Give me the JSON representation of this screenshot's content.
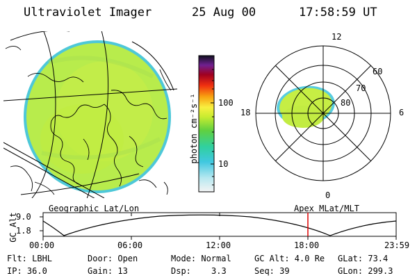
{
  "header": {
    "instrument": "Ultraviolet Imager",
    "date": "25 Aug 00",
    "time": "17:58:59  UT"
  },
  "colorbar": {
    "unit_label": "photon cm⁻²s⁻¹",
    "ticks": [
      "100",
      "10"
    ]
  },
  "polar_plot": {
    "mlt_labels": [
      "12",
      "18",
      "6",
      "0"
    ],
    "lat_labels": [
      "60",
      "70",
      "80"
    ]
  },
  "map_labels": {
    "left": "Geographic Lat/Lon",
    "right": "Apex MLat/MLT"
  },
  "altitude_plot": {
    "axis_label": "GC Alt",
    "y_ticks": [
      "9.0",
      "1.8"
    ],
    "time_ticks": [
      "00:00",
      "06:00",
      "12:00",
      "18:00",
      "23:59"
    ],
    "marker_color": "#dd0000"
  },
  "info": {
    "row1": {
      "filter": "Flt: LBHL",
      "door": "Door: Open",
      "mode": "Mode: Normal",
      "gc_alt": "GC Alt: 4.0 Re",
      "glat": "GLat: 73.4"
    },
    "row2": {
      "ip": "IP: 36.0",
      "gain": "Gain: 13",
      "dsp_label": "Dsp:",
      "dsp_value": "3.3",
      "seq": "Seq: 39",
      "glon": "GLon: 299.3"
    }
  }
}
